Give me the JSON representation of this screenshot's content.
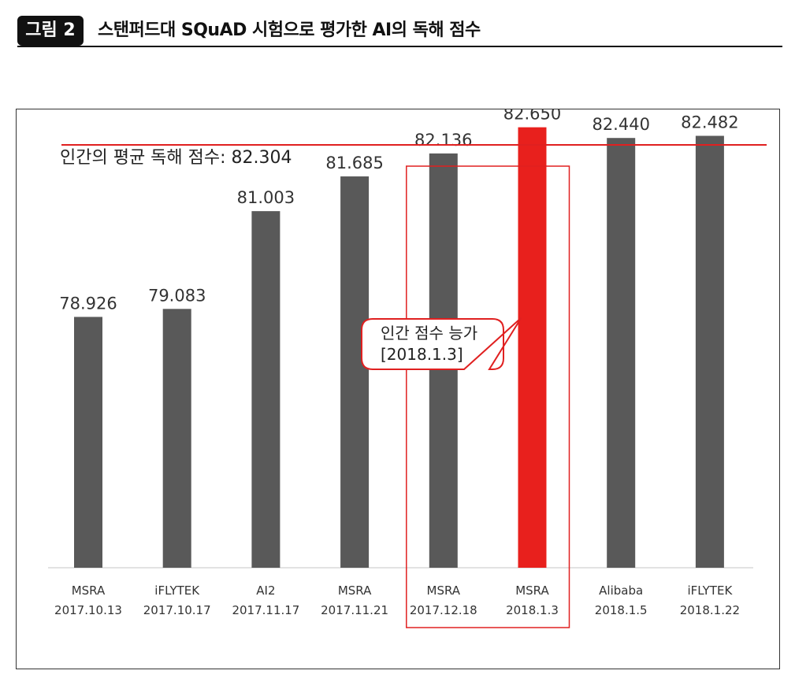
{
  "header": {
    "badge": "그림 2",
    "title": "스탠퍼드대 SQuAD 시험으로 평가한 AI의 독해 점수"
  },
  "colors": {
    "bar": "#595959",
    "highlight_bar": "#e8201d",
    "reference_line": "#e02020",
    "highlight_box": "#e02020"
  },
  "chart_data": {
    "type": "bar",
    "categories": [
      [
        "MSRA",
        "2017.10.13"
      ],
      [
        "iFLYTEK",
        "2017.10.17"
      ],
      [
        "AI2",
        "2017.11.17"
      ],
      [
        "MSRA",
        "2017.11.21"
      ],
      [
        "MSRA",
        "2017.12.18"
      ],
      [
        "MSRA",
        "2018.1.3"
      ],
      [
        "Alibaba",
        "2018.1.5"
      ],
      [
        "iFLYTEK",
        "2018.1.22"
      ]
    ],
    "values": [
      78.926,
      79.083,
      81.003,
      81.685,
      82.136,
      82.65,
      82.44,
      82.482
    ],
    "value_labels": [
      "78.926",
      "79.083",
      "81.003",
      "81.685",
      "82.136",
      "82.650",
      "82.440",
      "82.482"
    ],
    "highlight_index": 5,
    "highlight_box_indices": [
      4,
      5
    ],
    "reference_line": {
      "value": 82.304,
      "label": "인간의 평균 독해 점수: 82.304"
    },
    "annotation": {
      "line1": "인간 점수 능가",
      "line2": "[2018.1.3]"
    },
    "ylim": [
      74.0,
      83.0
    ],
    "grid": false,
    "title": "",
    "xlabel": "",
    "ylabel": ""
  }
}
